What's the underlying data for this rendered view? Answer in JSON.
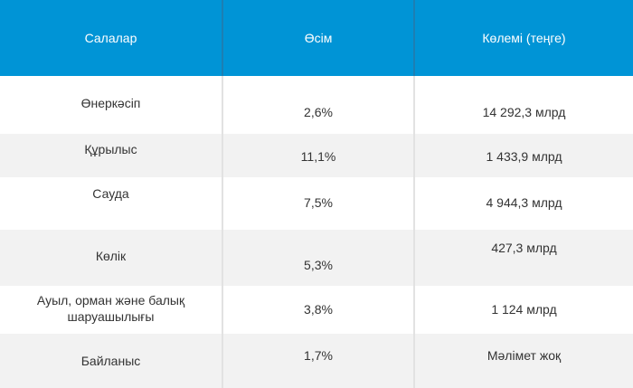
{
  "table": {
    "headers": [
      "Салалар",
      "Өсім",
      "Көлемі (теңге)"
    ],
    "rows": [
      {
        "sector": "Өнеркәсіп",
        "growth": "2,6%",
        "volume": "14 292,3 млрд"
      },
      {
        "sector": "Құрылыс",
        "growth": "11,1%",
        "volume": "1 433,9 млрд"
      },
      {
        "sector": "Сауда",
        "growth": "7,5%",
        "volume": "4 944,3 млрд"
      },
      {
        "sector": "Көлік",
        "growth": "5,3%",
        "volume": "427,3 млрд"
      },
      {
        "sector_line1": "Ауыл, орман және балық",
        "sector_line2": "шаруашылығы",
        "growth": "3,8%",
        "volume": "1 124 млрд"
      },
      {
        "sector": "Байланыс",
        "growth": "1,7%",
        "volume": "Мәлімет жоқ"
      }
    ]
  },
  "colors": {
    "header_bg": "#0094d6",
    "header_text": "#ffffff",
    "shaded_row": "#f2f2f2",
    "text": "#333333"
  }
}
